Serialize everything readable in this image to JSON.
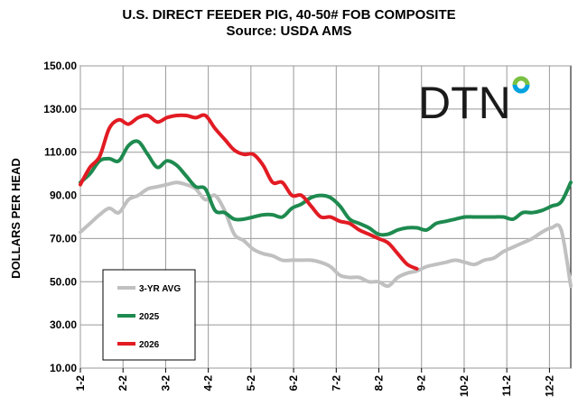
{
  "chart_data": {
    "type": "line",
    "title": "U.S. DIRECT FEEDER PIG, 40-50# FOB COMPOSITE",
    "subtitle": "Source:  USDA AMS",
    "xlabel": "",
    "ylabel": "DOLLARS PER HEAD",
    "ylim": [
      10,
      150
    ],
    "yticks": [
      "10.00",
      "30.00",
      "50.00",
      "70.00",
      "90.00",
      "110.00",
      "130.00",
      "150.00"
    ],
    "xticks": [
      "1-2",
      "2-2",
      "3-2",
      "4-2",
      "5-2",
      "6-2",
      "7-2",
      "8-2",
      "9-2",
      "10-2",
      "11-2",
      "12-2"
    ],
    "x_week_range": [
      0,
      51
    ],
    "grid": "on",
    "legend_position": "bottom-left",
    "series": [
      {
        "name": "3-YR AVG",
        "color": "#c0c0c0",
        "x": [
          0,
          1,
          2,
          3,
          4,
          5,
          6,
          7,
          8,
          9,
          10,
          11,
          12,
          13,
          14,
          15,
          16,
          17,
          18,
          19,
          20,
          21,
          22,
          23,
          24,
          25,
          26,
          27,
          28,
          29,
          30,
          31,
          32,
          33,
          34,
          35,
          36,
          37,
          38,
          39,
          40,
          41,
          42,
          43,
          44,
          45,
          46,
          47,
          48,
          49,
          50,
          51
        ],
        "values": [
          73,
          77,
          81,
          84,
          82,
          88,
          90,
          93,
          94,
          95,
          96,
          95,
          93,
          88,
          90,
          83,
          72,
          69,
          65,
          63,
          62,
          60,
          60,
          60,
          60,
          59,
          57,
          53,
          52,
          52,
          50,
          50,
          48,
          52,
          54,
          55,
          57,
          58,
          59,
          60,
          59,
          58,
          60,
          61,
          64,
          66,
          68,
          70,
          73,
          75,
          74,
          48
        ]
      },
      {
        "name": "2025",
        "color": "#1e8a4f",
        "x": [
          0,
          1,
          2,
          3,
          4,
          5,
          6,
          7,
          8,
          9,
          10,
          11,
          12,
          13,
          14,
          15,
          16,
          17,
          18,
          19,
          20,
          21,
          22,
          23,
          24,
          25,
          26,
          27,
          28,
          29,
          30,
          31,
          32,
          33,
          34,
          35,
          36,
          37,
          38,
          39,
          40,
          41,
          42,
          43,
          44,
          45,
          46,
          47,
          48,
          49,
          50,
          51
        ],
        "values": [
          96,
          100,
          106,
          107,
          106,
          113,
          115,
          109,
          103,
          106,
          104,
          99,
          94,
          93,
          83,
          82,
          79,
          79,
          80,
          81,
          81,
          80,
          84,
          86,
          89,
          90,
          89,
          85,
          79,
          77,
          75,
          72,
          72,
          74,
          75,
          75,
          74,
          77,
          78,
          79,
          80,
          80,
          80,
          80,
          80,
          79,
          82,
          82,
          83,
          85,
          87,
          96
        ]
      },
      {
        "name": "2026",
        "color": "#e21b23",
        "x": [
          0,
          1,
          2,
          3,
          4,
          5,
          6,
          7,
          8,
          9,
          10,
          11,
          12,
          13,
          14,
          15,
          16,
          17,
          18,
          19,
          20,
          21,
          22,
          23,
          24,
          25,
          26,
          27,
          28,
          29,
          30,
          31,
          32,
          33,
          34,
          35
        ],
        "values": [
          95,
          103,
          108,
          121,
          125,
          123,
          126,
          127,
          124,
          126,
          127,
          127,
          126,
          127,
          121,
          116,
          111,
          109,
          109,
          104,
          96,
          96,
          90,
          90,
          85,
          80,
          80,
          78,
          77,
          74,
          72,
          70,
          68,
          63,
          58,
          56
        ]
      }
    ]
  },
  "logo": {
    "text": "DTN",
    "colors": [
      "#7ac143",
      "#00a3e0",
      "#1a1a1a"
    ]
  }
}
